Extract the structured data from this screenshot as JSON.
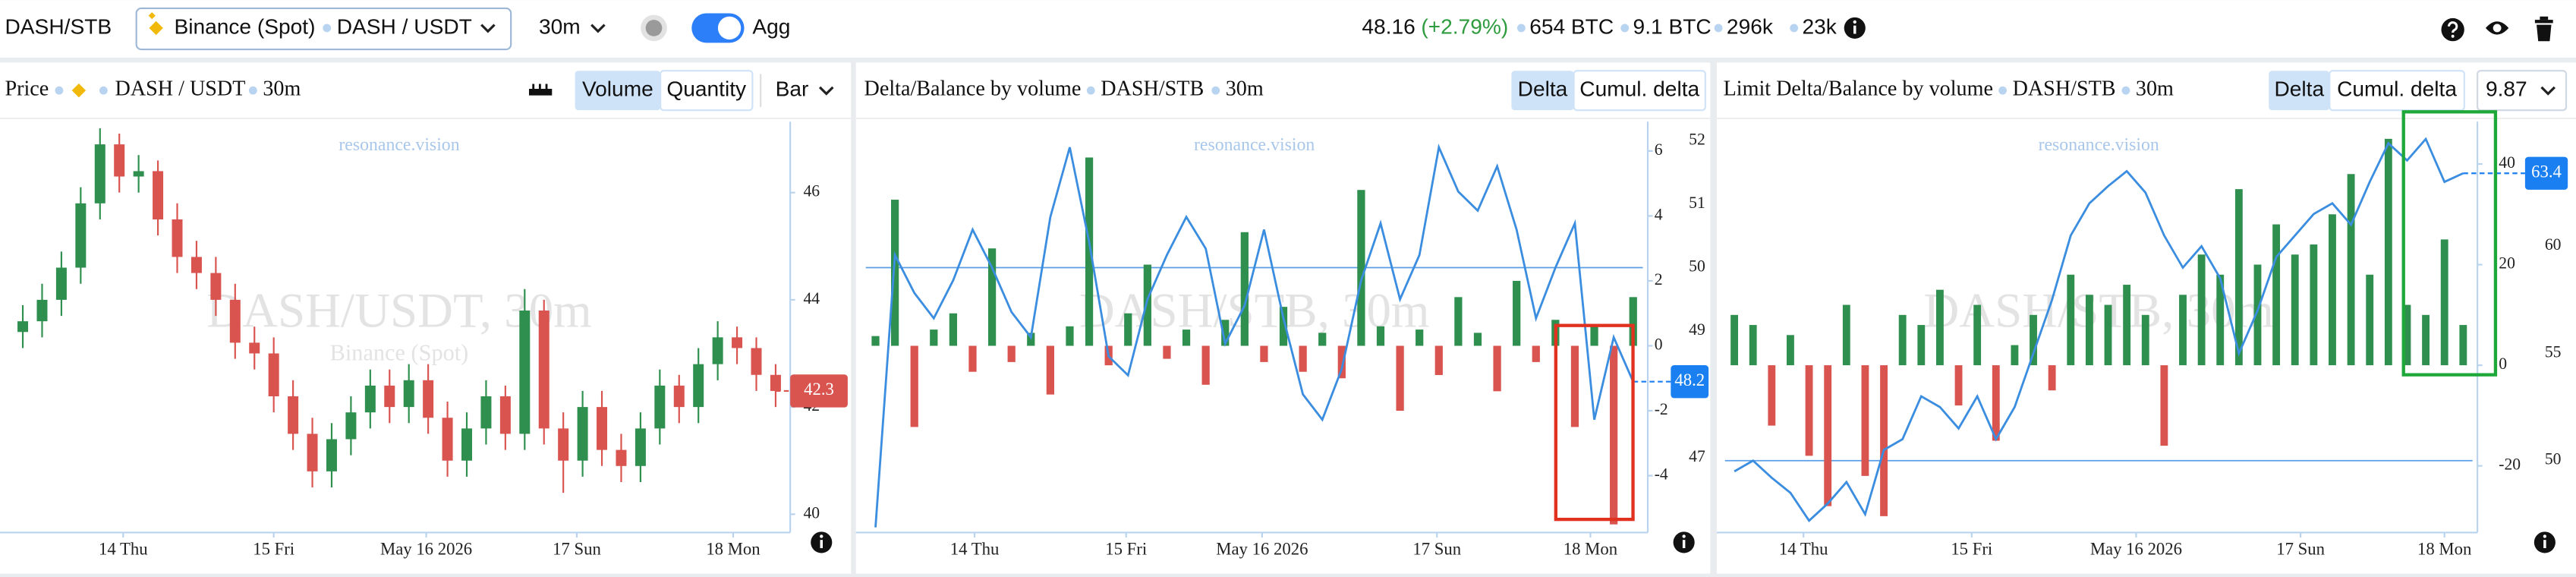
{
  "toolbar": {
    "symbol": "DASH/STB",
    "exchange": "Binance (Spot)",
    "pair": "DASH / USDT",
    "interval": "30m",
    "agg": "Agg",
    "price": "48.16",
    "change": "(+2.79%)",
    "stats": [
      "654 BTC",
      "9.1 BTC",
      "296k",
      "23k"
    ]
  },
  "chart_data": [
    {
      "type": "candlestick",
      "title": "Price",
      "source": "DASH / USDT",
      "interval": "30m",
      "buttons": [
        "Volume",
        "Quantity"
      ],
      "menu": "Bar",
      "watermark_top": "resonance.vision",
      "watermark": "DASH/USDT, 30m",
      "watermark_sub": "Binance (Spot)",
      "up_color": "#2f8f4e",
      "down_color": "#d9534f",
      "open": [
        43.4,
        43.6,
        44.0,
        44.6,
        45.8,
        46.9,
        46.3,
        46.4,
        45.5,
        44.8,
        44.5,
        44.0,
        43.2,
        43.0,
        42.2,
        41.5,
        40.8,
        41.4,
        41.9,
        42.4,
        42.0,
        42.5,
        41.8,
        41.0,
        41.6,
        42.2,
        41.5,
        43.8,
        41.6,
        41.0,
        42.0,
        41.2,
        40.9,
        41.6,
        42.4,
        42.0,
        42.8,
        43.3,
        43.1,
        42.6
      ],
      "high": [
        43.9,
        44.3,
        44.9,
        46.1,
        47.2,
        47.1,
        46.7,
        46.6,
        45.8,
        45.1,
        44.8,
        44.3,
        43.5,
        43.3,
        42.5,
        41.8,
        41.7,
        42.2,
        42.7,
        42.7,
        42.8,
        42.8,
        42.1,
        41.9,
        42.5,
        42.4,
        44.2,
        44.0,
        41.9,
        42.3,
        42.3,
        41.5,
        41.9,
        42.7,
        42.6,
        43.1,
        43.6,
        43.5,
        43.3,
        42.8
      ],
      "low": [
        43.1,
        43.3,
        43.7,
        44.3,
        45.5,
        46.0,
        46.0,
        45.2,
        44.5,
        44.2,
        43.7,
        42.9,
        42.7,
        41.9,
        41.2,
        40.5,
        40.5,
        41.1,
        41.6,
        41.7,
        41.7,
        41.5,
        40.7,
        40.7,
        41.3,
        41.2,
        41.2,
        41.3,
        40.4,
        40.7,
        40.9,
        40.6,
        40.6,
        41.3,
        41.7,
        41.7,
        42.5,
        42.8,
        42.3,
        42.0
      ],
      "close": [
        43.6,
        44.0,
        44.6,
        45.8,
        46.9,
        46.3,
        46.4,
        45.5,
        44.8,
        44.5,
        44.0,
        43.2,
        43.0,
        42.2,
        41.5,
        40.8,
        41.4,
        41.9,
        42.4,
        42.0,
        42.5,
        41.8,
        41.0,
        41.6,
        42.2,
        41.5,
        43.8,
        41.6,
        41.0,
        42.0,
        41.2,
        40.9,
        41.6,
        42.4,
        42.0,
        42.8,
        43.3,
        43.1,
        42.6,
        42.3
      ],
      "xlim": [
        0,
        40
      ],
      "xticks": [
        {
          "value": 5.7,
          "label": "14 Thu"
        },
        {
          "value": 13.5,
          "label": "15 Fri"
        },
        {
          "value": 21.4,
          "label": "May 16 2026"
        },
        {
          "value": 29.2,
          "label": "17 Sun"
        },
        {
          "value": 37.3,
          "label": "18 Mon"
        }
      ],
      "ylim": [
        39.72,
        47.2
      ],
      "yticks": [
        40,
        42,
        44,
        46
      ],
      "last_value": 42.3,
      "last_color": "#d9534f"
    },
    {
      "type": "bar",
      "title": "Delta/Balance by volume",
      "source": "DASH/STB",
      "interval": "30m",
      "buttons": [
        "Delta",
        "Cumul. delta"
      ],
      "watermark_top": "resonance.vision",
      "watermark": "DASH/STB, 30m",
      "up_color": "#2f8f4e",
      "down_color": "#d9534f",
      "series": [
        {
          "kind": "bar",
          "values": [
            0.3,
            4.5,
            -2.5,
            0.5,
            1.0,
            -0.8,
            3.0,
            -0.5,
            0.4,
            -1.5,
            0.6,
            5.8,
            -0.6,
            1.0,
            2.5,
            -0.4,
            0.5,
            -1.2,
            0.8,
            3.5,
            -0.5,
            1.2,
            -0.8,
            0.4,
            -1.0,
            4.8,
            0.6,
            -2.0,
            0.5,
            -0.9,
            1.5,
            0.4,
            -1.4,
            2.0,
            -0.5,
            0.8,
            -2.5,
            0.6,
            -5.5,
            1.5
          ]
        },
        {
          "kind": "line",
          "axis": "y2",
          "color": "#3b8de0",
          "values": [
            45.9,
            50.2,
            49.6,
            49.2,
            49.8,
            50.6,
            50.0,
            49.3,
            48.9,
            50.8,
            51.9,
            50.4,
            48.6,
            48.3,
            49.5,
            50.2,
            50.8,
            50.3,
            48.8,
            49.4,
            50.6,
            49.2,
            48.0,
            47.6,
            48.4,
            49.8,
            50.7,
            49.5,
            50.2,
            51.9,
            51.2,
            50.9,
            51.6,
            50.6,
            49.2,
            50.0,
            50.7,
            47.6,
            48.9,
            48.2
          ]
        }
      ],
      "xlim": [
        0,
        40
      ],
      "xticks": [
        {
          "value": 5.6,
          "label": "14 Thu"
        },
        {
          "value": 13.4,
          "label": "15 Fri"
        },
        {
          "value": 20.4,
          "label": "May 16 2026"
        },
        {
          "value": 29.4,
          "label": "17 Sun"
        },
        {
          "value": 37.3,
          "label": "18 Mon"
        }
      ],
      "ylim": [
        -5.65,
        6.7
      ],
      "yticks": [
        -4,
        -2,
        0,
        2,
        4,
        6
      ],
      "y2lim": [
        45.87,
        52.2
      ],
      "y2ticks": [
        47,
        49,
        50,
        51,
        52
      ],
      "hline_y2": 50,
      "last_value": 48.2,
      "last_color": "#1a7ff0"
    },
    {
      "type": "bar",
      "title": "Limit Delta/Balance by volume",
      "source": "DASH/STB",
      "interval": "30m",
      "buttons": [
        "Delta",
        "Cumul. delta"
      ],
      "menu": "9.87",
      "watermark_top": "resonance.vision",
      "watermark": "DASH/STB, 30m",
      "up_color": "#2f8f4e",
      "down_color": "#d9534f",
      "series": [
        {
          "kind": "bar",
          "values": [
            10,
            8,
            -12,
            6,
            -18,
            -28,
            12,
            -22,
            -30,
            10,
            8,
            15,
            -8,
            12,
            -15,
            4,
            10,
            -5,
            18,
            14,
            12,
            16,
            10,
            -16,
            14,
            22,
            18,
            35,
            20,
            28,
            22,
            24,
            30,
            38,
            18,
            45,
            12,
            10,
            25,
            8
          ]
        },
        {
          "kind": "line",
          "axis": "y2",
          "color": "#3b8de0",
          "values": [
            49.5,
            50.0,
            49.2,
            48.5,
            47.2,
            48.0,
            49.0,
            47.5,
            50.5,
            51.0,
            53.0,
            52.5,
            51.5,
            53.0,
            51.0,
            52.5,
            55.0,
            57.5,
            60.5,
            62.0,
            62.8,
            63.5,
            62.5,
            60.5,
            59.0,
            60.0,
            58.5,
            55.0,
            57.0,
            59.5,
            60.5,
            61.5,
            62.0,
            61.0,
            63.0,
            64.8,
            64.0,
            65.0,
            63.0,
            63.4
          ]
        }
      ],
      "xlim": [
        0,
        40
      ],
      "xticks": [
        {
          "value": 4.2,
          "label": "14 Thu"
        },
        {
          "value": 13.2,
          "label": "15 Fri"
        },
        {
          "value": 22.0,
          "label": "May 16 2026"
        },
        {
          "value": 30.8,
          "label": "17 Sun"
        },
        {
          "value": 38.5,
          "label": "18 Mon"
        }
      ],
      "ylim": [
        -32.6,
        47.1
      ],
      "yticks": [
        -20,
        0,
        20,
        40
      ],
      "y2lim": [
        46.8,
        65.5
      ],
      "y2ticks": [
        50,
        55,
        60
      ],
      "hline_y2": 50,
      "last_value": 63.4,
      "last_color": "#1a7ff0"
    }
  ]
}
